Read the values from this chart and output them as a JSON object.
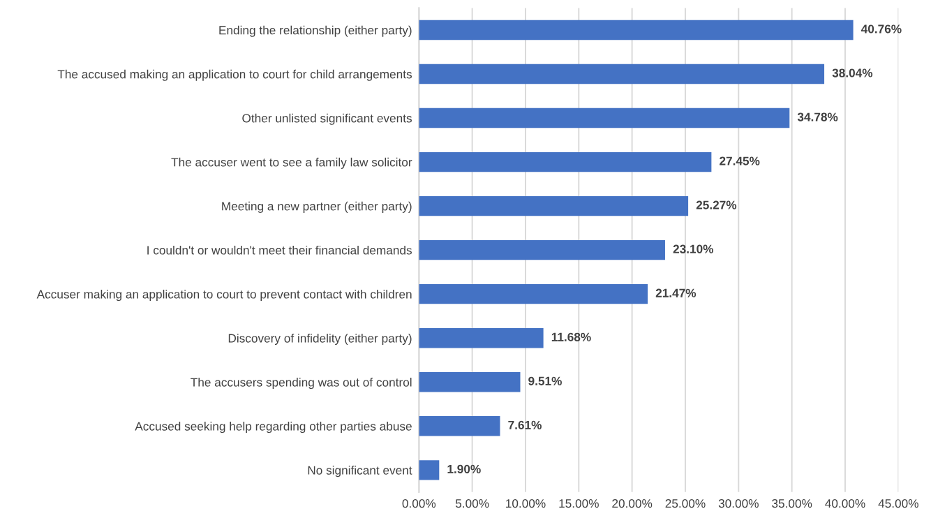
{
  "chart_data": {
    "type": "bar",
    "orientation": "horizontal",
    "categories": [
      "Ending the relationship (either party)",
      "The accused making an application to court for child arrangements",
      "Other unlisted significant events",
      "The accuser went to see a family law solicitor",
      "Meeting a new partner (either party)",
      "I couldn't or wouldn't meet their financial demands",
      "Accuser making an application to court to prevent contact with children",
      "Discovery of infidelity (either party)",
      "The accusers spending was out of control",
      "Accused seeking help regarding other parties abuse",
      "No significant event"
    ],
    "values": [
      40.76,
      38.04,
      34.78,
      27.45,
      25.27,
      23.1,
      21.47,
      11.68,
      9.51,
      7.61,
      1.9
    ],
    "value_labels": [
      "40.76%",
      "38.04%",
      "34.78%",
      "27.45%",
      "25.27%",
      "23.10%",
      "21.47%",
      "11.68%",
      "9.51%",
      "7.61%",
      "1.90%"
    ],
    "color": "#4472c4",
    "xlim": [
      0,
      45
    ],
    "xticks": [
      {
        "value": 0,
        "label": "0.00%"
      },
      {
        "value": 5,
        "label": "5.00%"
      },
      {
        "value": 10,
        "label": "10.00%"
      },
      {
        "value": 15,
        "label": "15.00%"
      },
      {
        "value": 20,
        "label": "20.00%"
      },
      {
        "value": 25,
        "label": "25.00%"
      },
      {
        "value": 30,
        "label": "30.00%"
      },
      {
        "value": 35,
        "label": "35.00%"
      },
      {
        "value": 40,
        "label": "40.00%"
      },
      {
        "value": 45,
        "label": "45.00%"
      }
    ],
    "grid": "x"
  }
}
